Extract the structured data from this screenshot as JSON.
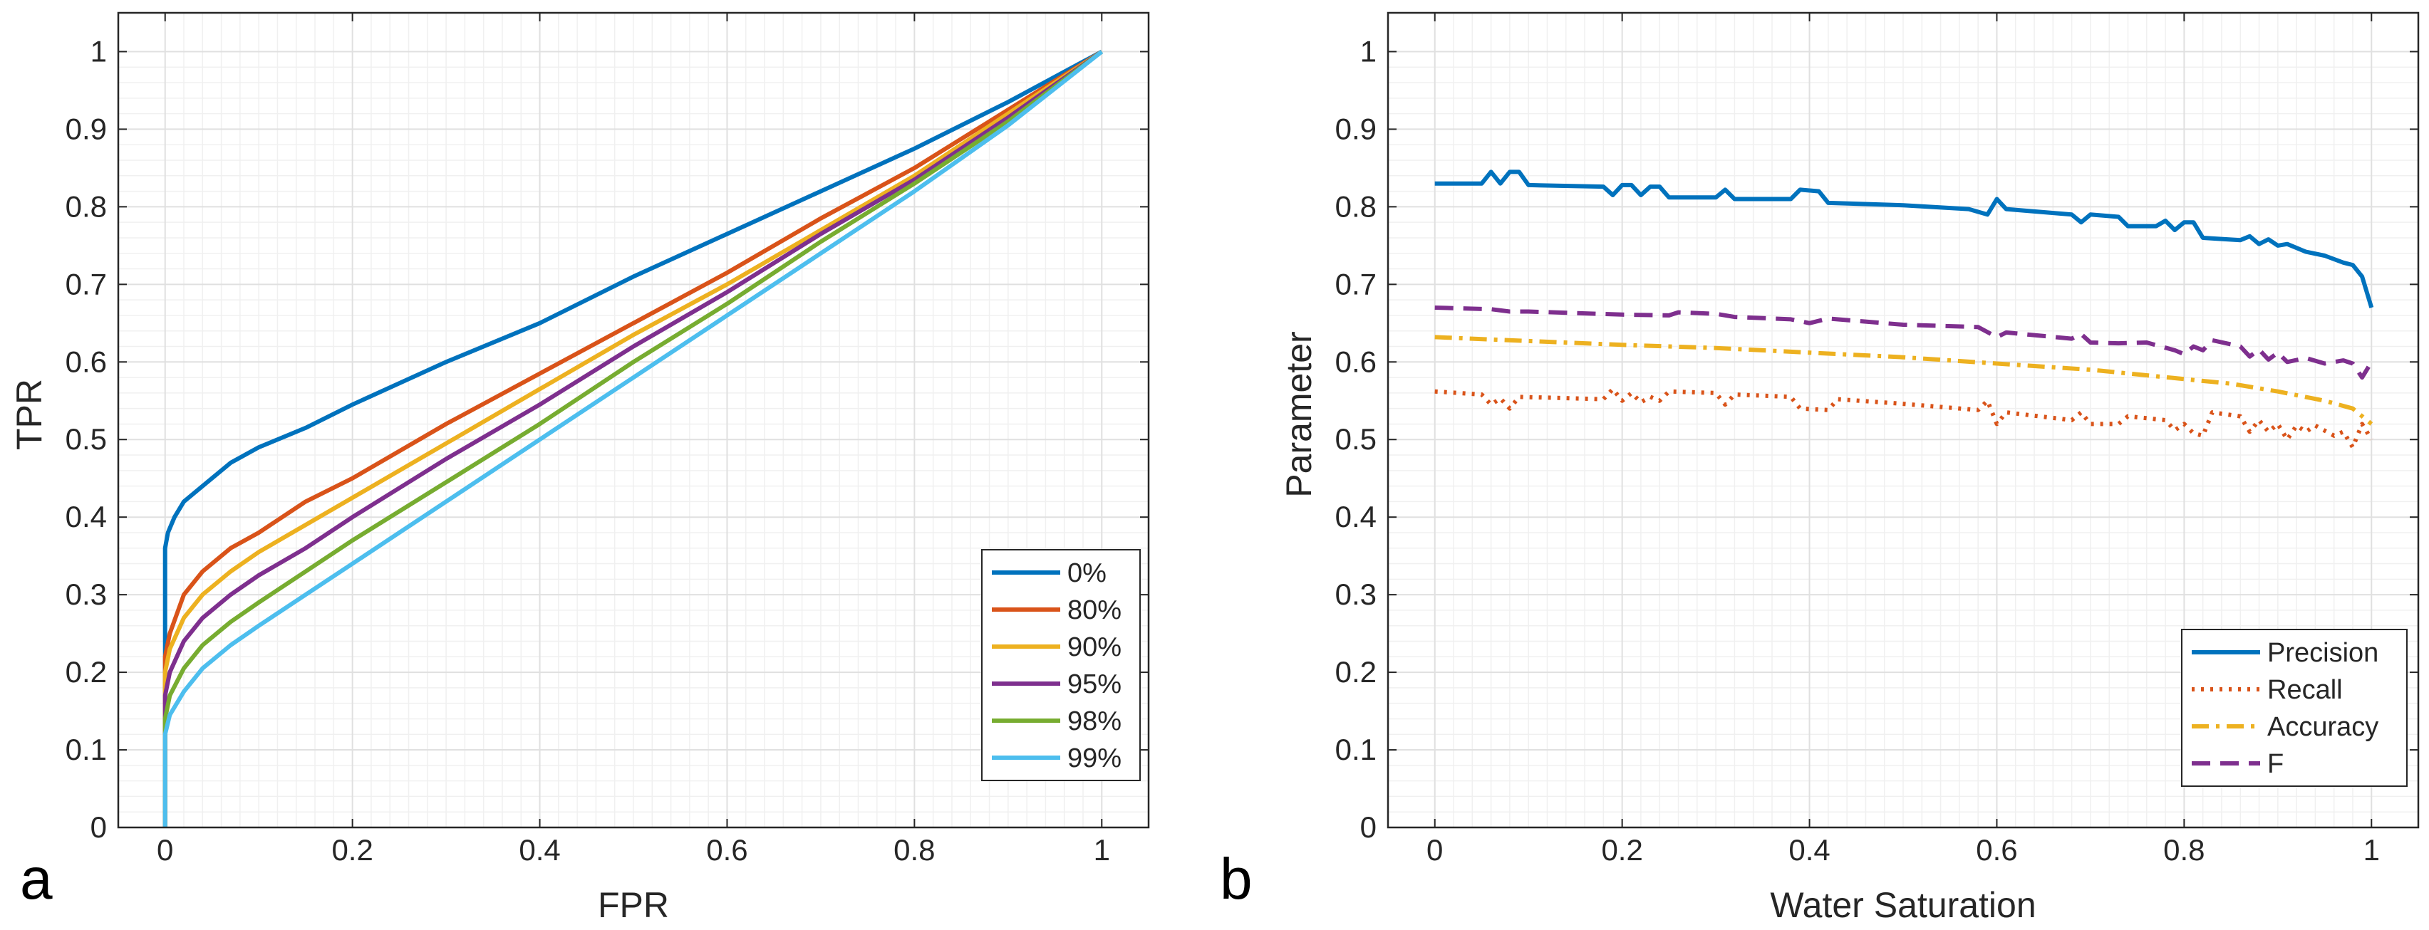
{
  "chart_data": [
    {
      "panel_label": "a",
      "type": "line",
      "title": "",
      "xlabel": "FPR",
      "ylabel": "TPR",
      "xlim": [
        -0.05,
        1.05
      ],
      "ylim": [
        0,
        1.05
      ],
      "xticks": [
        "0",
        "0.2",
        "0.4",
        "0.6",
        "0.8",
        "1"
      ],
      "yticks": [
        "0",
        "0.1",
        "0.2",
        "0.3",
        "0.4",
        "0.5",
        "0.6",
        "0.7",
        "0.8",
        "0.9",
        "1"
      ],
      "grid": true,
      "legend": "bottom-right",
      "series": [
        {
          "name": "0%",
          "color": "#0072BD",
          "dash": "solid",
          "points": [
            [
              0,
              0
            ],
            [
              0,
              0.36
            ],
            [
              0.003,
              0.38
            ],
            [
              0.01,
              0.4
            ],
            [
              0.02,
              0.42
            ],
            [
              0.04,
              0.44
            ],
            [
              0.07,
              0.47
            ],
            [
              0.1,
              0.49
            ],
            [
              0.15,
              0.515
            ],
            [
              0.2,
              0.545
            ],
            [
              0.3,
              0.6
            ],
            [
              0.4,
              0.65
            ],
            [
              0.5,
              0.71
            ],
            [
              0.6,
              0.765
            ],
            [
              0.7,
              0.82
            ],
            [
              0.8,
              0.875
            ],
            [
              0.9,
              0.935
            ],
            [
              1,
              1
            ]
          ]
        },
        {
          "name": "80%",
          "color": "#D95319",
          "dash": "solid",
          "points": [
            [
              0,
              0
            ],
            [
              0,
              0.22
            ],
            [
              0.005,
              0.25
            ],
            [
              0.02,
              0.3
            ],
            [
              0.04,
              0.33
            ],
            [
              0.07,
              0.36
            ],
            [
              0.1,
              0.38
            ],
            [
              0.15,
              0.42
            ],
            [
              0.2,
              0.45
            ],
            [
              0.3,
              0.52
            ],
            [
              0.4,
              0.585
            ],
            [
              0.5,
              0.65
            ],
            [
              0.6,
              0.715
            ],
            [
              0.7,
              0.785
            ],
            [
              0.8,
              0.85
            ],
            [
              0.9,
              0.925
            ],
            [
              1,
              1
            ]
          ]
        },
        {
          "name": "90%",
          "color": "#EDB120",
          "dash": "solid",
          "points": [
            [
              0,
              0
            ],
            [
              0,
              0.2
            ],
            [
              0.005,
              0.23
            ],
            [
              0.02,
              0.27
            ],
            [
              0.04,
              0.3
            ],
            [
              0.07,
              0.33
            ],
            [
              0.1,
              0.355
            ],
            [
              0.15,
              0.39
            ],
            [
              0.2,
              0.425
            ],
            [
              0.3,
              0.495
            ],
            [
              0.4,
              0.565
            ],
            [
              0.5,
              0.635
            ],
            [
              0.6,
              0.7
            ],
            [
              0.7,
              0.77
            ],
            [
              0.8,
              0.84
            ],
            [
              0.9,
              0.92
            ],
            [
              1,
              1
            ]
          ]
        },
        {
          "name": "95%",
          "color": "#7E2F8E",
          "dash": "solid",
          "points": [
            [
              0,
              0
            ],
            [
              0,
              0.17
            ],
            [
              0.005,
              0.2
            ],
            [
              0.02,
              0.24
            ],
            [
              0.04,
              0.27
            ],
            [
              0.07,
              0.3
            ],
            [
              0.1,
              0.325
            ],
            [
              0.15,
              0.36
            ],
            [
              0.2,
              0.4
            ],
            [
              0.3,
              0.475
            ],
            [
              0.4,
              0.545
            ],
            [
              0.5,
              0.62
            ],
            [
              0.6,
              0.69
            ],
            [
              0.7,
              0.765
            ],
            [
              0.8,
              0.835
            ],
            [
              0.9,
              0.915
            ],
            [
              1,
              1
            ]
          ]
        },
        {
          "name": "98%",
          "color": "#77AC30",
          "dash": "solid",
          "points": [
            [
              0,
              0
            ],
            [
              0,
              0.14
            ],
            [
              0.005,
              0.17
            ],
            [
              0.02,
              0.205
            ],
            [
              0.04,
              0.235
            ],
            [
              0.07,
              0.265
            ],
            [
              0.1,
              0.29
            ],
            [
              0.15,
              0.33
            ],
            [
              0.2,
              0.37
            ],
            [
              0.3,
              0.445
            ],
            [
              0.4,
              0.52
            ],
            [
              0.5,
              0.6
            ],
            [
              0.6,
              0.675
            ],
            [
              0.7,
              0.755
            ],
            [
              0.8,
              0.83
            ],
            [
              0.9,
              0.91
            ],
            [
              1,
              1
            ]
          ]
        },
        {
          "name": "99%",
          "color": "#4DBEEE",
          "dash": "solid",
          "points": [
            [
              0,
              0
            ],
            [
              0,
              0.12
            ],
            [
              0.005,
              0.145
            ],
            [
              0.02,
              0.175
            ],
            [
              0.04,
              0.205
            ],
            [
              0.07,
              0.235
            ],
            [
              0.1,
              0.26
            ],
            [
              0.15,
              0.3
            ],
            [
              0.2,
              0.34
            ],
            [
              0.3,
              0.42
            ],
            [
              0.4,
              0.5
            ],
            [
              0.5,
              0.58
            ],
            [
              0.6,
              0.66
            ],
            [
              0.7,
              0.74
            ],
            [
              0.8,
              0.82
            ],
            [
              0.9,
              0.905
            ],
            [
              1,
              1
            ]
          ]
        }
      ]
    },
    {
      "panel_label": "b",
      "type": "line",
      "title": "",
      "xlabel": "Water Saturation",
      "ylabel": "Parameter",
      "xlim": [
        -0.05,
        1.05
      ],
      "ylim": [
        0,
        1.05
      ],
      "xticks": [
        "0",
        "0.2",
        "0.4",
        "0.6",
        "0.8",
        "1"
      ],
      "yticks": [
        "0",
        "0.1",
        "0.2",
        "0.3",
        "0.4",
        "0.5",
        "0.6",
        "0.7",
        "0.8",
        "0.9",
        "1"
      ],
      "grid": true,
      "legend": "bottom-right",
      "series": [
        {
          "name": "Precision",
          "color": "#0072BD",
          "dash": "solid",
          "points": [
            [
              0,
              0.83
            ],
            [
              0.05,
              0.83
            ],
            [
              0.06,
              0.845
            ],
            [
              0.07,
              0.83
            ],
            [
              0.08,
              0.845
            ],
            [
              0.09,
              0.845
            ],
            [
              0.1,
              0.828
            ],
            [
              0.18,
              0.826
            ],
            [
              0.19,
              0.815
            ],
            [
              0.2,
              0.828
            ],
            [
              0.21,
              0.828
            ],
            [
              0.22,
              0.815
            ],
            [
              0.23,
              0.826
            ],
            [
              0.24,
              0.826
            ],
            [
              0.25,
              0.812
            ],
            [
              0.3,
              0.812
            ],
            [
              0.31,
              0.822
            ],
            [
              0.32,
              0.81
            ],
            [
              0.38,
              0.81
            ],
            [
              0.39,
              0.822
            ],
            [
              0.41,
              0.82
            ],
            [
              0.42,
              0.805
            ],
            [
              0.5,
              0.802
            ],
            [
              0.57,
              0.797
            ],
            [
              0.59,
              0.79
            ],
            [
              0.6,
              0.81
            ],
            [
              0.61,
              0.797
            ],
            [
              0.68,
              0.79
            ],
            [
              0.69,
              0.78
            ],
            [
              0.7,
              0.79
            ],
            [
              0.73,
              0.787
            ],
            [
              0.74,
              0.775
            ],
            [
              0.77,
              0.775
            ],
            [
              0.78,
              0.782
            ],
            [
              0.79,
              0.77
            ],
            [
              0.8,
              0.78
            ],
            [
              0.81,
              0.78
            ],
            [
              0.82,
              0.76
            ],
            [
              0.86,
              0.757
            ],
            [
              0.87,
              0.762
            ],
            [
              0.88,
              0.752
            ],
            [
              0.89,
              0.758
            ],
            [
              0.9,
              0.75
            ],
            [
              0.91,
              0.752
            ],
            [
              0.93,
              0.742
            ],
            [
              0.95,
              0.737
            ],
            [
              0.97,
              0.728
            ],
            [
              0.98,
              0.725
            ],
            [
              0.99,
              0.71
            ],
            [
              1,
              0.67
            ]
          ]
        },
        {
          "name": "Recall",
          "color": "#D95319",
          "dash": "dot",
          "points": [
            [
              0,
              0.562
            ],
            [
              0.05,
              0.558
            ],
            [
              0.06,
              0.545
            ],
            [
              0.07,
              0.553
            ],
            [
              0.08,
              0.54
            ],
            [
              0.09,
              0.555
            ],
            [
              0.18,
              0.552
            ],
            [
              0.19,
              0.565
            ],
            [
              0.2,
              0.55
            ],
            [
              0.21,
              0.56
            ],
            [
              0.22,
              0.548
            ],
            [
              0.23,
              0.555
            ],
            [
              0.24,
              0.55
            ],
            [
              0.25,
              0.562
            ],
            [
              0.3,
              0.56
            ],
            [
              0.31,
              0.545
            ],
            [
              0.32,
              0.558
            ],
            [
              0.38,
              0.555
            ],
            [
              0.39,
              0.54
            ],
            [
              0.42,
              0.538
            ],
            [
              0.43,
              0.552
            ],
            [
              0.5,
              0.546
            ],
            [
              0.58,
              0.538
            ],
            [
              0.59,
              0.55
            ],
            [
              0.6,
              0.52
            ],
            [
              0.61,
              0.535
            ],
            [
              0.68,
              0.525
            ],
            [
              0.69,
              0.535
            ],
            [
              0.7,
              0.52
            ],
            [
              0.73,
              0.52
            ],
            [
              0.74,
              0.53
            ],
            [
              0.78,
              0.525
            ],
            [
              0.79,
              0.512
            ],
            [
              0.8,
              0.52
            ],
            [
              0.81,
              0.508
            ],
            [
              0.82,
              0.505
            ],
            [
              0.83,
              0.535
            ],
            [
              0.86,
              0.53
            ],
            [
              0.87,
              0.51
            ],
            [
              0.88,
              0.525
            ],
            [
              0.89,
              0.51
            ],
            [
              0.9,
              0.52
            ],
            [
              0.91,
              0.5
            ],
            [
              0.92,
              0.518
            ],
            [
              0.93,
              0.51
            ],
            [
              0.94,
              0.518
            ],
            [
              0.96,
              0.505
            ],
            [
              0.97,
              0.51
            ],
            [
              0.98,
              0.49
            ],
            [
              0.99,
              0.52
            ],
            [
              1,
              0.5
            ]
          ]
        },
        {
          "name": "Accuracy",
          "color": "#EDB120",
          "dash": "dashdot",
          "points": [
            [
              0,
              0.632
            ],
            [
              0.1,
              0.627
            ],
            [
              0.2,
              0.622
            ],
            [
              0.3,
              0.618
            ],
            [
              0.4,
              0.612
            ],
            [
              0.5,
              0.606
            ],
            [
              0.6,
              0.598
            ],
            [
              0.7,
              0.59
            ],
            [
              0.8,
              0.578
            ],
            [
              0.85,
              0.572
            ],
            [
              0.9,
              0.562
            ],
            [
              0.95,
              0.55
            ],
            [
              0.98,
              0.54
            ],
            [
              1,
              0.52
            ]
          ]
        },
        {
          "name": "F",
          "color": "#7E2F8E",
          "dash": "dash",
          "points": [
            [
              0,
              0.67
            ],
            [
              0.06,
              0.668
            ],
            [
              0.08,
              0.665
            ],
            [
              0.1,
              0.665
            ],
            [
              0.2,
              0.661
            ],
            [
              0.25,
              0.66
            ],
            [
              0.26,
              0.664
            ],
            [
              0.3,
              0.662
            ],
            [
              0.32,
              0.658
            ],
            [
              0.38,
              0.655
            ],
            [
              0.4,
              0.65
            ],
            [
              0.42,
              0.656
            ],
            [
              0.5,
              0.648
            ],
            [
              0.58,
              0.645
            ],
            [
              0.6,
              0.632
            ],
            [
              0.61,
              0.638
            ],
            [
              0.68,
              0.63
            ],
            [
              0.69,
              0.636
            ],
            [
              0.7,
              0.625
            ],
            [
              0.73,
              0.624
            ],
            [
              0.76,
              0.625
            ],
            [
              0.79,
              0.615
            ],
            [
              0.8,
              0.61
            ],
            [
              0.81,
              0.62
            ],
            [
              0.82,
              0.615
            ],
            [
              0.83,
              0.628
            ],
            [
              0.86,
              0.62
            ],
            [
              0.87,
              0.607
            ],
            [
              0.88,
              0.616
            ],
            [
              0.89,
              0.603
            ],
            [
              0.9,
              0.612
            ],
            [
              0.91,
              0.6
            ],
            [
              0.93,
              0.605
            ],
            [
              0.95,
              0.598
            ],
            [
              0.97,
              0.602
            ],
            [
              0.98,
              0.598
            ],
            [
              0.99,
              0.58
            ],
            [
              1,
              0.6
            ]
          ]
        }
      ]
    }
  ]
}
